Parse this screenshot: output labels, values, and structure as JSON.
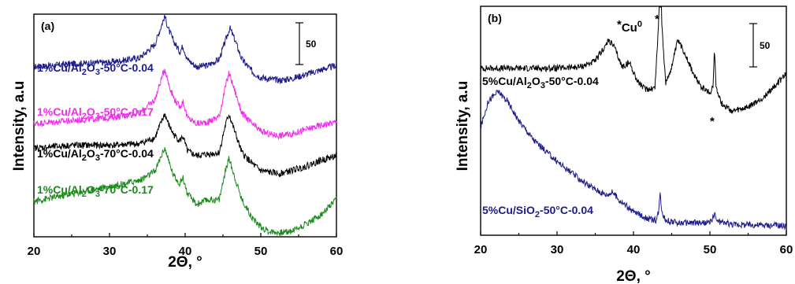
{
  "chart_data": [
    {
      "panel_label": "(a)",
      "type": "line",
      "xlabel": "2Θ, °",
      "ylabel": "Intensity, a.u",
      "xlim": [
        20,
        60
      ],
      "x_ticks": [
        "20",
        "30",
        "40",
        "50",
        "60"
      ],
      "y_ticks": [],
      "scale_bar": {
        "label": "50",
        "value": 50
      },
      "grid": false,
      "series": [
        {
          "name": "1%Cu/Al2O3-50°C-0.04",
          "color": "#1c1c8c",
          "offset": 198,
          "points": [
            [
              20,
              20
            ],
            [
              25,
              24
            ],
            [
              30,
              26
            ],
            [
              34,
              32
            ],
            [
              36,
              50
            ],
            [
              37.3,
              88
            ],
            [
              37.8,
              70
            ],
            [
              38.5,
              54
            ],
            [
              39.3,
              40
            ],
            [
              39.7,
              48
            ],
            [
              40.3,
              30
            ],
            [
              41.5,
              20
            ],
            [
              43,
              22
            ],
            [
              44.5,
              30
            ],
            [
              45.5,
              60
            ],
            [
              45.9,
              72
            ],
            [
              46.5,
              58
            ],
            [
              47.5,
              30
            ],
            [
              49,
              12
            ],
            [
              50,
              6
            ],
            [
              51,
              4
            ],
            [
              52.5,
              2
            ],
            [
              54,
              4
            ],
            [
              56,
              10
            ],
            [
              58,
              16
            ],
            [
              60,
              22
            ]
          ]
        },
        {
          "name": "1%Cu/Al2O3-50°C-0.17",
          "color": "#ee2ee8",
          "offset": 128,
          "points": [
            [
              20,
              14
            ],
            [
              25,
              18
            ],
            [
              30,
              22
            ],
            [
              34,
              28
            ],
            [
              36,
              46
            ],
            [
              37.3,
              88
            ],
            [
              37.8,
              68
            ],
            [
              38.5,
              48
            ],
            [
              39.3,
              36
            ],
            [
              39.7,
              44
            ],
            [
              40.3,
              22
            ],
            [
              41.5,
              14
            ],
            [
              43,
              16
            ],
            [
              44.5,
              24
            ],
            [
              45.3,
              62
            ],
            [
              45.8,
              82
            ],
            [
              46.5,
              60
            ],
            [
              47.5,
              28
            ],
            [
              49,
              12
            ],
            [
              50,
              4
            ],
            [
              51,
              0
            ],
            [
              52.5,
              -2
            ],
            [
              54,
              0
            ],
            [
              56,
              6
            ],
            [
              58,
              12
            ],
            [
              60,
              16
            ]
          ]
        },
        {
          "name": "1%Cu/Al2O3-70°C-0.04",
          "color": "#000000",
          "offset": 75,
          "points": [
            [
              20,
              34
            ],
            [
              25,
              38
            ],
            [
              30,
              38
            ],
            [
              34,
              40
            ],
            [
              36,
              48
            ],
            [
              37.3,
              80
            ],
            [
              37.8,
              66
            ],
            [
              38.5,
              52
            ],
            [
              39.3,
              44
            ],
            [
              39.7,
              50
            ],
            [
              40.3,
              30
            ],
            [
              41.5,
              24
            ],
            [
              43,
              26
            ],
            [
              44.5,
              28
            ],
            [
              45.3,
              64
            ],
            [
              45.8,
              80
            ],
            [
              46.5,
              58
            ],
            [
              47.5,
              28
            ],
            [
              49,
              12
            ],
            [
              50,
              4
            ],
            [
              51,
              2
            ],
            [
              52.5,
              0
            ],
            [
              54,
              4
            ],
            [
              56,
              10
            ],
            [
              58,
              18
            ],
            [
              60,
              24
            ]
          ]
        },
        {
          "name": "1%Cu/Al2O3-70°C-0.17",
          "color": "#1a8a1a",
          "offset": 0,
          "points": [
            [
              20,
              38
            ],
            [
              25,
              48
            ],
            [
              30,
              58
            ],
            [
              34,
              66
            ],
            [
              36,
              78
            ],
            [
              37.3,
              110
            ],
            [
              37.8,
              92
            ],
            [
              38.5,
              72
            ],
            [
              39.3,
              62
            ],
            [
              39.7,
              70
            ],
            [
              40.3,
              48
            ],
            [
              41.5,
              34
            ],
            [
              43,
              40
            ],
            [
              44.5,
              40
            ],
            [
              45.3,
              78
            ],
            [
              45.8,
              96
            ],
            [
              46.5,
              72
            ],
            [
              47.5,
              40
            ],
            [
              49,
              14
            ],
            [
              50,
              4
            ],
            [
              51,
              -2
            ],
            [
              52.5,
              -4
            ],
            [
              54,
              -2
            ],
            [
              56,
              8
            ],
            [
              58,
              20
            ],
            [
              60,
              40
            ]
          ]
        }
      ]
    },
    {
      "panel_label": "(b)",
      "type": "line",
      "xlabel": "2Θ, °",
      "ylabel": "Intensity, a.u",
      "xlim": [
        20,
        60
      ],
      "x_ticks": [
        "20",
        "30",
        "40",
        "50",
        "60"
      ],
      "y_ticks": [],
      "scale_bar": {
        "label": "50",
        "value": 50
      },
      "grid": false,
      "annotations": [
        {
          "text": "Cu",
          "sup": "0",
          "star": "*"
        },
        {
          "text": "*"
        },
        {
          "text": "*"
        }
      ],
      "series": [
        {
          "name": "5%Cu/Al2O3-50°C-0.04",
          "color": "#000000",
          "offset": 155,
          "points": [
            [
              20,
              70
            ],
            [
              25,
              70
            ],
            [
              30,
              70
            ],
            [
              33,
              72
            ],
            [
              35,
              80
            ],
            [
              36.8,
              110
            ],
            [
              37.5,
              100
            ],
            [
              38.5,
              72
            ],
            [
              39.5,
              78
            ],
            [
              40.5,
              52
            ],
            [
              41.5,
              40
            ],
            [
              42.8,
              42
            ],
            [
              43.3,
              135
            ],
            [
              43.5,
              298
            ],
            [
              43.7,
              135
            ],
            [
              44.2,
              48
            ],
            [
              45,
              72
            ],
            [
              45.8,
              110
            ],
            [
              46.8,
              90
            ],
            [
              48,
              58
            ],
            [
              49,
              42
            ],
            [
              50,
              34
            ],
            [
              50.4,
              45
            ],
            [
              50.6,
              96
            ],
            [
              50.8,
              45
            ],
            [
              51.5,
              20
            ],
            [
              53,
              8
            ],
            [
              55,
              14
            ],
            [
              57,
              28
            ],
            [
              60,
              62
            ]
          ]
        },
        {
          "name": "5%Cu/SiO2-50°C-0.04",
          "color": "#1c1c8c",
          "offset": 0,
          "points": [
            [
              20,
              140
            ],
            [
              21,
              178
            ],
            [
              22.3,
              192
            ],
            [
              23.5,
              178
            ],
            [
              25,
              150
            ],
            [
              27,
              122
            ],
            [
              30,
              92
            ],
            [
              33,
              66
            ],
            [
              35,
              52
            ],
            [
              36.5,
              44
            ],
            [
              37.3,
              48
            ],
            [
              38,
              38
            ],
            [
              40,
              20
            ],
            [
              42,
              10
            ],
            [
              43,
              8
            ],
            [
              43.3,
              22
            ],
            [
              43.5,
              48
            ],
            [
              43.7,
              22
            ],
            [
              44.2,
              8
            ],
            [
              46,
              4
            ],
            [
              48,
              4
            ],
            [
              50,
              4
            ],
            [
              50.6,
              16
            ],
            [
              51,
              6
            ],
            [
              53,
              2
            ],
            [
              60,
              0
            ]
          ]
        }
      ]
    }
  ]
}
